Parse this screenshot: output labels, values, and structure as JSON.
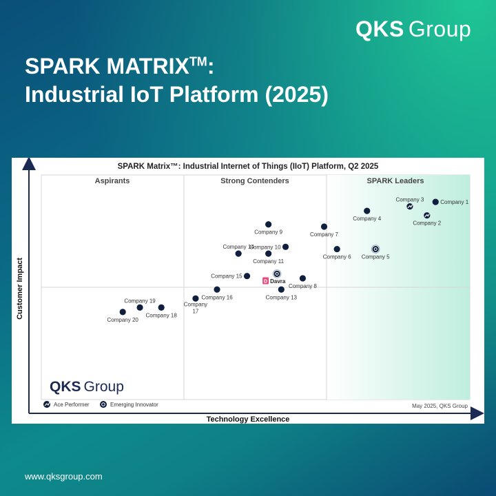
{
  "brand": {
    "name_bold": "QKS",
    "name_light": "Group"
  },
  "headline": {
    "line1": "SPARK MATRIX",
    "tm": "TM",
    "colon": ":",
    "line2": "Industrial IoT Platform (2025)"
  },
  "footer": {
    "url": "www.qksgroup.com"
  },
  "colors": {
    "dot": "#0f1f3d",
    "leaders_tint": "#bfeede",
    "arrow": "#1b2a52"
  },
  "chart_data": {
    "type": "scatter",
    "title": "SPARK Matrix™: Industrial Internet of Things (IIoT) Platform, Q2 2025",
    "xlabel": "Technology Excellence",
    "ylabel": "Customer Impact",
    "xlim": [
      0,
      100
    ],
    "ylim": [
      0,
      100
    ],
    "quadrants": [
      "Aspirants",
      "Strong Contenders",
      "SPARK Leaders"
    ],
    "watermark": {
      "bold": "QKS",
      "light": "Group"
    },
    "legend": [
      {
        "label": "Ace Performer",
        "marker": "ace"
      },
      {
        "label": "Emerging Innovator",
        "marker": "emerging"
      }
    ],
    "source": "May  2025, QKS Group",
    "points": [
      {
        "name": "Company 1",
        "x": 92,
        "y": 88,
        "marker": "dot",
        "label": "right"
      },
      {
        "name": "Company 3",
        "x": 86,
        "y": 86,
        "marker": "ace",
        "label": "top"
      },
      {
        "name": "Company 2",
        "x": 90,
        "y": 82,
        "marker": "ace",
        "label": "bottom"
      },
      {
        "name": "Company 4",
        "x": 76,
        "y": 84,
        "marker": "dot",
        "label": "bottom"
      },
      {
        "name": "Company 7",
        "x": 66,
        "y": 77,
        "marker": "dot",
        "label": "bottom"
      },
      {
        "name": "Company 6",
        "x": 69,
        "y": 67,
        "marker": "dot",
        "label": "bottom"
      },
      {
        "name": "Company 5",
        "x": 78,
        "y": 67,
        "marker": "emerging",
        "label": "bottom"
      },
      {
        "name": "Company 9",
        "x": 53,
        "y": 78,
        "marker": "dot",
        "label": "bottom"
      },
      {
        "name": "Company 10",
        "x": 57,
        "y": 68,
        "marker": "dot",
        "label": "left"
      },
      {
        "name": "Company 14",
        "x": 46,
        "y": 65,
        "marker": "dot",
        "label": "top"
      },
      {
        "name": "Company 11",
        "x": 53,
        "y": 65,
        "marker": "dot",
        "label": "bottom"
      },
      {
        "name": "Company 15",
        "x": 48,
        "y": 55,
        "marker": "dot",
        "label": "left"
      },
      {
        "name": "Davra",
        "x": 55,
        "y": 56,
        "marker": "emerging",
        "label": "davra"
      },
      {
        "name": "Company 8",
        "x": 61,
        "y": 54,
        "marker": "dot",
        "label": "bottom"
      },
      {
        "name": "Company 13",
        "x": 56,
        "y": 49,
        "marker": "dot",
        "label": "bottom"
      },
      {
        "name": "Company 16",
        "x": 41,
        "y": 49,
        "marker": "dot",
        "label": "bottom"
      },
      {
        "name": "Company 17",
        "x": 36,
        "y": 45,
        "marker": "dot",
        "label": "bottom2"
      },
      {
        "name": "Company 18",
        "x": 28,
        "y": 41,
        "marker": "dot",
        "label": "bottom"
      },
      {
        "name": "Company 19",
        "x": 23,
        "y": 41,
        "marker": "dot",
        "label": "top"
      },
      {
        "name": "Company 20",
        "x": 19,
        "y": 39,
        "marker": "dot",
        "label": "bottom"
      }
    ]
  }
}
